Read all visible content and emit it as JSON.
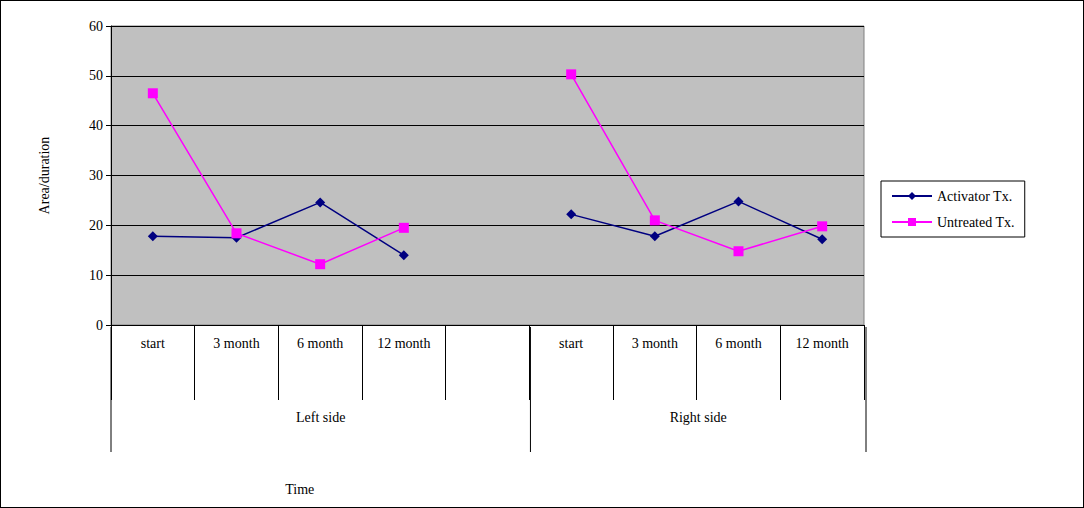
{
  "chart_data": {
    "type": "line",
    "categories": [
      "start",
      "3 month",
      "6 month",
      "12 month",
      null,
      "start",
      "3 month",
      "6 month",
      "12 month"
    ],
    "category_groups": [
      {
        "name": "Left side",
        "span": 5
      },
      {
        "name": "Right side",
        "span": 4
      }
    ],
    "series": [
      {
        "name": "Activator Tx.",
        "color": "#000080",
        "marker": "diamond",
        "values": [
          17.8,
          17.5,
          24.6,
          14.0,
          null,
          22.2,
          17.8,
          24.8,
          17.2
        ]
      },
      {
        "name": "Untreated Tx.",
        "color": "#ff00ff",
        "marker": "square",
        "values": [
          46.5,
          18.4,
          12.2,
          19.5,
          null,
          50.3,
          21.0,
          14.8,
          19.8
        ]
      }
    ],
    "x_label": "Time",
    "y_label": "Area/duration",
    "ylim": [
      0,
      60
    ],
    "yticks": [
      0,
      10,
      20,
      30,
      40,
      50,
      60
    ],
    "grid": true,
    "legend": "right"
  }
}
